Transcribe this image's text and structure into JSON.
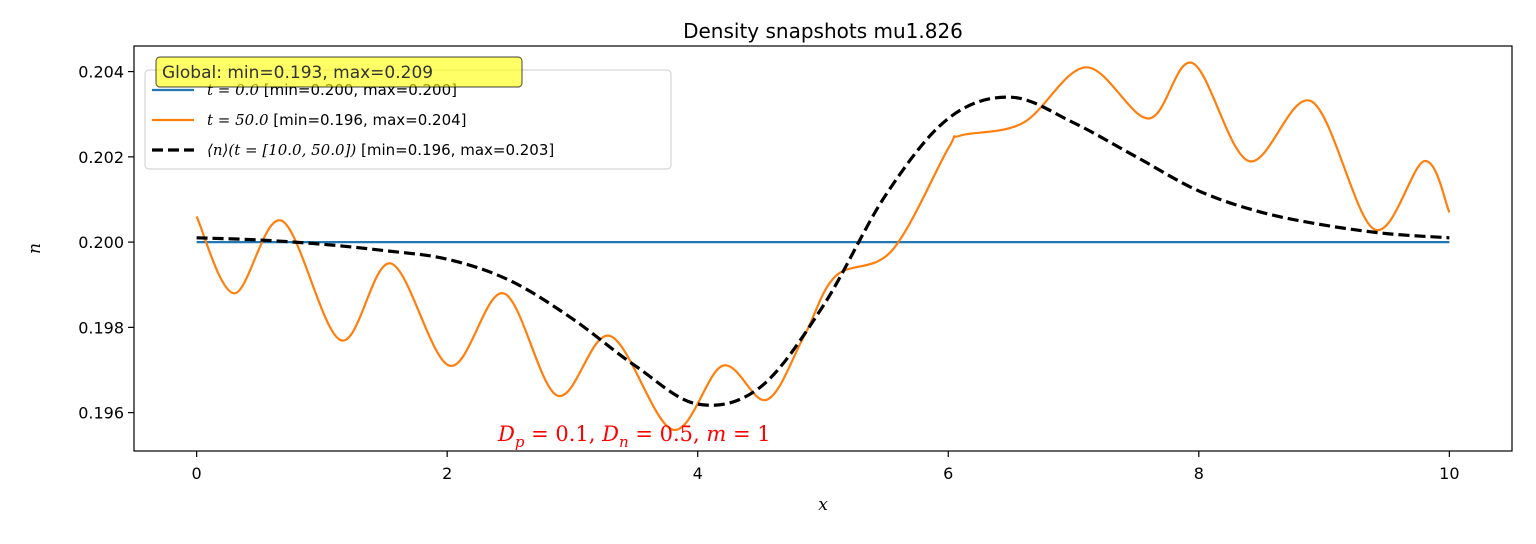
{
  "chart_data": {
    "type": "line",
    "title": "Density snapshots mu1.826",
    "xlabel": "x",
    "ylabel": "n",
    "xlim": [
      -0.5,
      10.5
    ],
    "ylim": [
      0.1951,
      0.2046
    ],
    "x_ticks": [
      0,
      2,
      4,
      6,
      8,
      10
    ],
    "x_tick_labels": [
      "0",
      "2",
      "4",
      "6",
      "8",
      "10"
    ],
    "y_ticks": [
      0.196,
      0.198,
      0.2,
      0.202,
      0.204
    ],
    "y_tick_labels": [
      "0.196",
      "0.198",
      "0.200",
      "0.202",
      "0.204"
    ],
    "grid": false,
    "legend_position": "top-left",
    "global_annotation": "Global: min=0.193, max=0.209",
    "parameter_annotation": "D_p = 0.1, D_n = 0.5, m = 1",
    "series": [
      {
        "legend_math": "t = 0.0",
        "legend_rest": " [min=0.200, max=0.200]",
        "color": "#1f77b4",
        "style": "solid",
        "x": [
          0,
          10
        ],
        "y": [
          0.2,
          0.2
        ]
      },
      {
        "legend_math": "t = 50.0",
        "legend_rest": " [min=0.196, max=0.204]",
        "color": "#ff7f0e",
        "style": "solid",
        "x": [
          0,
          0.3,
          0.68,
          1.15,
          1.55,
          2.02,
          2.45,
          2.88,
          3.3,
          3.8,
          4.2,
          4.55,
          4.85,
          5.1,
          5.55,
          6.0,
          6.1,
          6.6,
          7.1,
          7.6,
          7.95,
          8.4,
          8.9,
          9.4,
          9.8,
          10
        ],
        "y": [
          0.2006,
          0.1988,
          0.2005,
          0.1977,
          0.1995,
          0.1971,
          0.1988,
          0.1964,
          0.1978,
          0.1956,
          0.1971,
          0.1963,
          0.1978,
          0.1992,
          0.1998,
          0.2022,
          0.2025,
          0.2028,
          0.2041,
          0.2029,
          0.2042,
          0.2019,
          0.2033,
          0.2003,
          0.2019,
          0.2007
        ]
      },
      {
        "legend_math": "⟨n⟩(t = [10.0, 50.0])",
        "legend_rest": " [min=0.196, max=0.203]",
        "color": "#000000",
        "style": "dashed",
        "x": [
          0,
          0.5,
          1,
          1.5,
          2,
          2.5,
          3,
          3.5,
          4,
          4.5,
          5,
          5.5,
          6,
          6.5,
          7,
          7.5,
          8,
          8.5,
          9,
          9.5,
          10
        ],
        "y": [
          0.2001,
          0.20005,
          0.19995,
          0.1998,
          0.1996,
          0.1991,
          0.1982,
          0.1971,
          0.1962,
          0.1966,
          0.1985,
          0.2011,
          0.2029,
          0.2034,
          0.2028,
          0.202,
          0.2012,
          0.2007,
          0.2004,
          0.2002,
          0.2001
        ]
      }
    ]
  }
}
